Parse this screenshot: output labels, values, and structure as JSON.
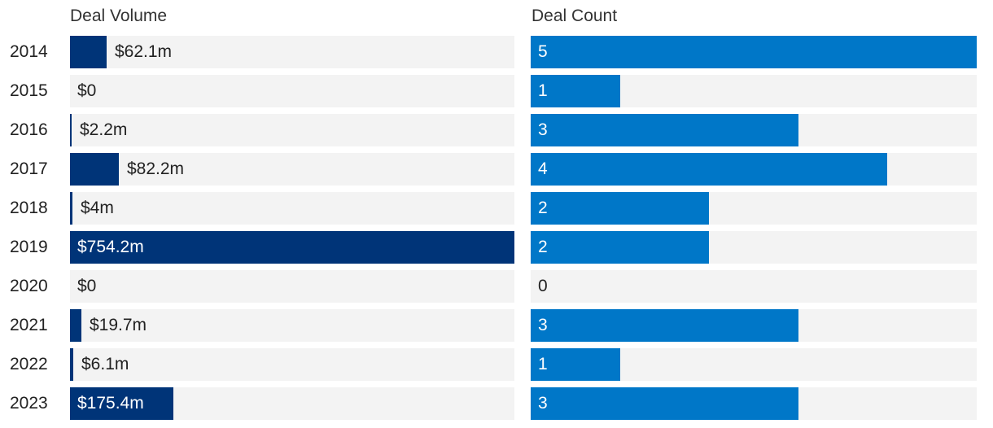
{
  "chart_data": [
    {
      "type": "bar",
      "orientation": "horizontal",
      "title": "Deal Volume",
      "categories": [
        "2014",
        "2015",
        "2016",
        "2017",
        "2018",
        "2019",
        "2020",
        "2021",
        "2022",
        "2023"
      ],
      "values": [
        62.1,
        0,
        2.2,
        82.2,
        4,
        754.2,
        0,
        19.7,
        6.1,
        175.4
      ],
      "labels": [
        "$62.1m",
        "$0",
        "$2.2m",
        "$82.2m",
        "$4m",
        "$754.2m",
        "$0",
        "$19.7m",
        "$6.1m",
        "$175.4m"
      ],
      "xlim": [
        0,
        754.2
      ],
      "color": "#003478",
      "track_color": "#f3f3f3",
      "grid": false
    },
    {
      "type": "bar",
      "orientation": "horizontal",
      "title": "Deal Count",
      "categories": [
        "2014",
        "2015",
        "2016",
        "2017",
        "2018",
        "2019",
        "2020",
        "2021",
        "2022",
        "2023"
      ],
      "values": [
        5,
        1,
        3,
        4,
        2,
        2,
        0,
        3,
        1,
        3
      ],
      "labels": [
        "5",
        "1",
        "3",
        "4",
        "2",
        "2",
        "0",
        "3",
        "1",
        "3"
      ],
      "xlim": [
        0,
        5
      ],
      "color": "#0077c8",
      "track_color": "#f3f3f3",
      "grid": false
    }
  ]
}
